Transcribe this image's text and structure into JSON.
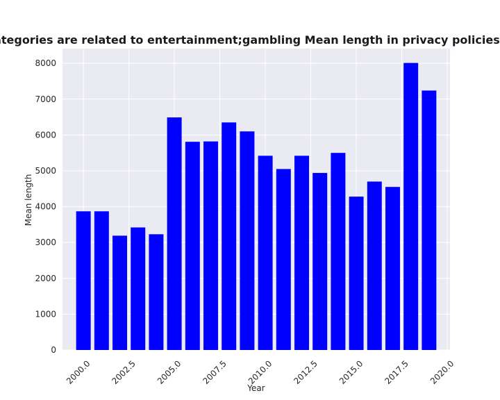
{
  "chart_data": {
    "type": "bar",
    "title": "when categories are related to entertainment;gambling Mean length in privacy policies by Year",
    "xlabel": "Year",
    "ylabel": "Mean length",
    "x": [
      2000,
      2001,
      2002,
      2003,
      2004,
      2005,
      2006,
      2007,
      2008,
      2009,
      2010,
      2011,
      2012,
      2013,
      2014,
      2015,
      2016,
      2017,
      2018,
      2019
    ],
    "values": [
      3870,
      3870,
      3190,
      3420,
      3230,
      6490,
      5810,
      5820,
      6350,
      6100,
      5420,
      5050,
      5420,
      4940,
      5500,
      4280,
      4700,
      4550,
      8010,
      7240
    ],
    "xlim": [
      1998.85,
      2020.15
    ],
    "ylim": [
      0,
      8410
    ],
    "xticks": [
      2000.0,
      2002.5,
      2005.0,
      2007.5,
      2010.0,
      2012.5,
      2015.0,
      2017.5,
      2020.0
    ],
    "xtick_labels": [
      "2000.0",
      "2002.5",
      "2005.0",
      "2007.5",
      "2010.0",
      "2012.5",
      "2015.0",
      "2017.5",
      "2020.0"
    ],
    "yticks": [
      0,
      1000,
      2000,
      3000,
      4000,
      5000,
      6000,
      7000,
      8000
    ],
    "ytick_labels": [
      "0",
      "1000",
      "2000",
      "3000",
      "4000",
      "5000",
      "6000",
      "7000",
      "8000"
    ],
    "bar_width": 0.8,
    "grid": true,
    "colors": {
      "bar": "#0000ff",
      "plot_bg": "#eaeaf2",
      "grid": "#ffffff"
    }
  }
}
